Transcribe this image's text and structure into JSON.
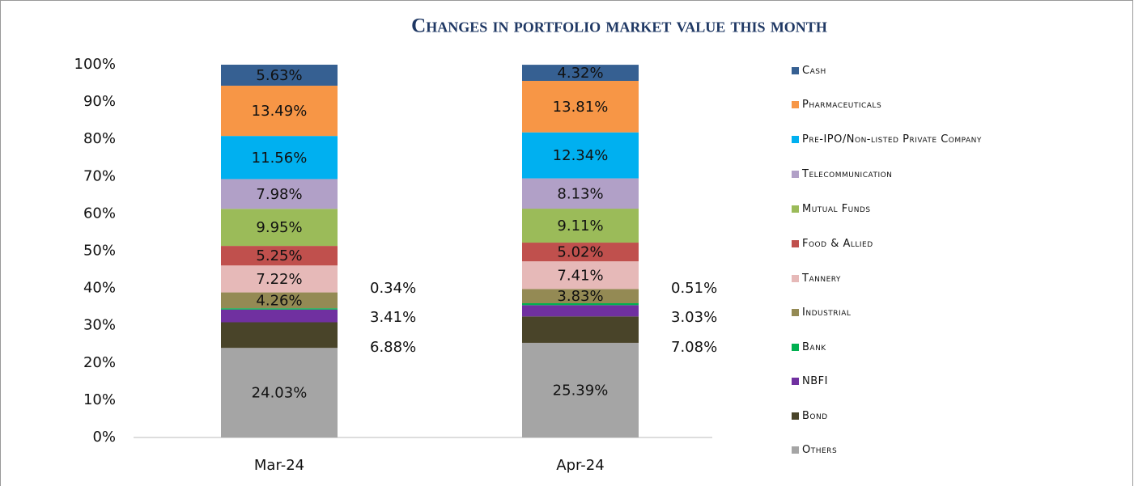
{
  "chart_data": {
    "type": "stacked_bar",
    "title": "Changes in portfolio market value this month",
    "categories": [
      "Mar-24",
      "Apr-24"
    ],
    "ylim": [
      0,
      100
    ],
    "yticks": [
      {
        "value": 0,
        "label": "0%"
      },
      {
        "value": 10,
        "label": "10%"
      },
      {
        "value": 20,
        "label": "20%"
      },
      {
        "value": 30,
        "label": "30%"
      },
      {
        "value": 40,
        "label": "40%"
      },
      {
        "value": 50,
        "label": "50%"
      },
      {
        "value": 60,
        "label": "60%"
      },
      {
        "value": 70,
        "label": "70%"
      },
      {
        "value": 80,
        "label": "80%"
      },
      {
        "value": 90,
        "label": "90%"
      },
      {
        "value": 100,
        "label": "100%"
      }
    ],
    "grid": false,
    "legend": "right",
    "series": [
      {
        "name": "Others",
        "color": "#a5a5a5",
        "values": [
          24.03,
          25.39
        ],
        "value_labels": [
          "24.03%",
          "25.39%"
        ]
      },
      {
        "name": "Bond",
        "color": "#494429",
        "values": [
          6.88,
          7.08
        ],
        "value_labels": [
          "6.88%",
          "7.08%"
        ]
      },
      {
        "name": "NBFI",
        "color": "#7030a0",
        "values": [
          3.41,
          3.03
        ],
        "value_labels": [
          "3.41%",
          "3.03%"
        ]
      },
      {
        "name": "Bank",
        "color": "#00b050",
        "values": [
          0.34,
          0.51
        ],
        "value_labels": [
          "0.34%",
          "0.51%"
        ]
      },
      {
        "name": "Industrial",
        "color": "#948a54",
        "values": [
          4.26,
          3.83
        ],
        "value_labels": [
          "4.26%",
          "3.83%"
        ]
      },
      {
        "name": "Tannery",
        "color": "#e6b9b8",
        "values": [
          7.22,
          7.41
        ],
        "value_labels": [
          "7.22%",
          "7.41%"
        ]
      },
      {
        "name": "Food & Allied",
        "color": "#c0504d",
        "values": [
          5.25,
          5.02
        ],
        "value_labels": [
          "5.25%",
          "5.02%"
        ]
      },
      {
        "name": "Mutual Funds",
        "color": "#9bbb59",
        "values": [
          9.95,
          9.11
        ],
        "value_labels": [
          "9.95%",
          "9.11%"
        ]
      },
      {
        "name": "Telecommunication",
        "color": "#b1a0c7",
        "values": [
          7.98,
          8.13
        ],
        "value_labels": [
          "7.98%",
          "8.13%"
        ]
      },
      {
        "name": "Pre-IPO/Non-listed Private Company",
        "color": "#00b0f0",
        "values": [
          11.56,
          12.34
        ],
        "value_labels": [
          "11.56%",
          "12.34%"
        ]
      },
      {
        "name": "Pharmaceuticals",
        "color": "#f79646",
        "values": [
          13.49,
          13.81
        ],
        "value_labels": [
          "13.49%",
          "13.81%"
        ]
      },
      {
        "name": "Cash",
        "color": "#366092",
        "values": [
          5.63,
          4.32
        ],
        "value_labels": [
          "5.63%",
          "4.32%"
        ]
      }
    ]
  }
}
